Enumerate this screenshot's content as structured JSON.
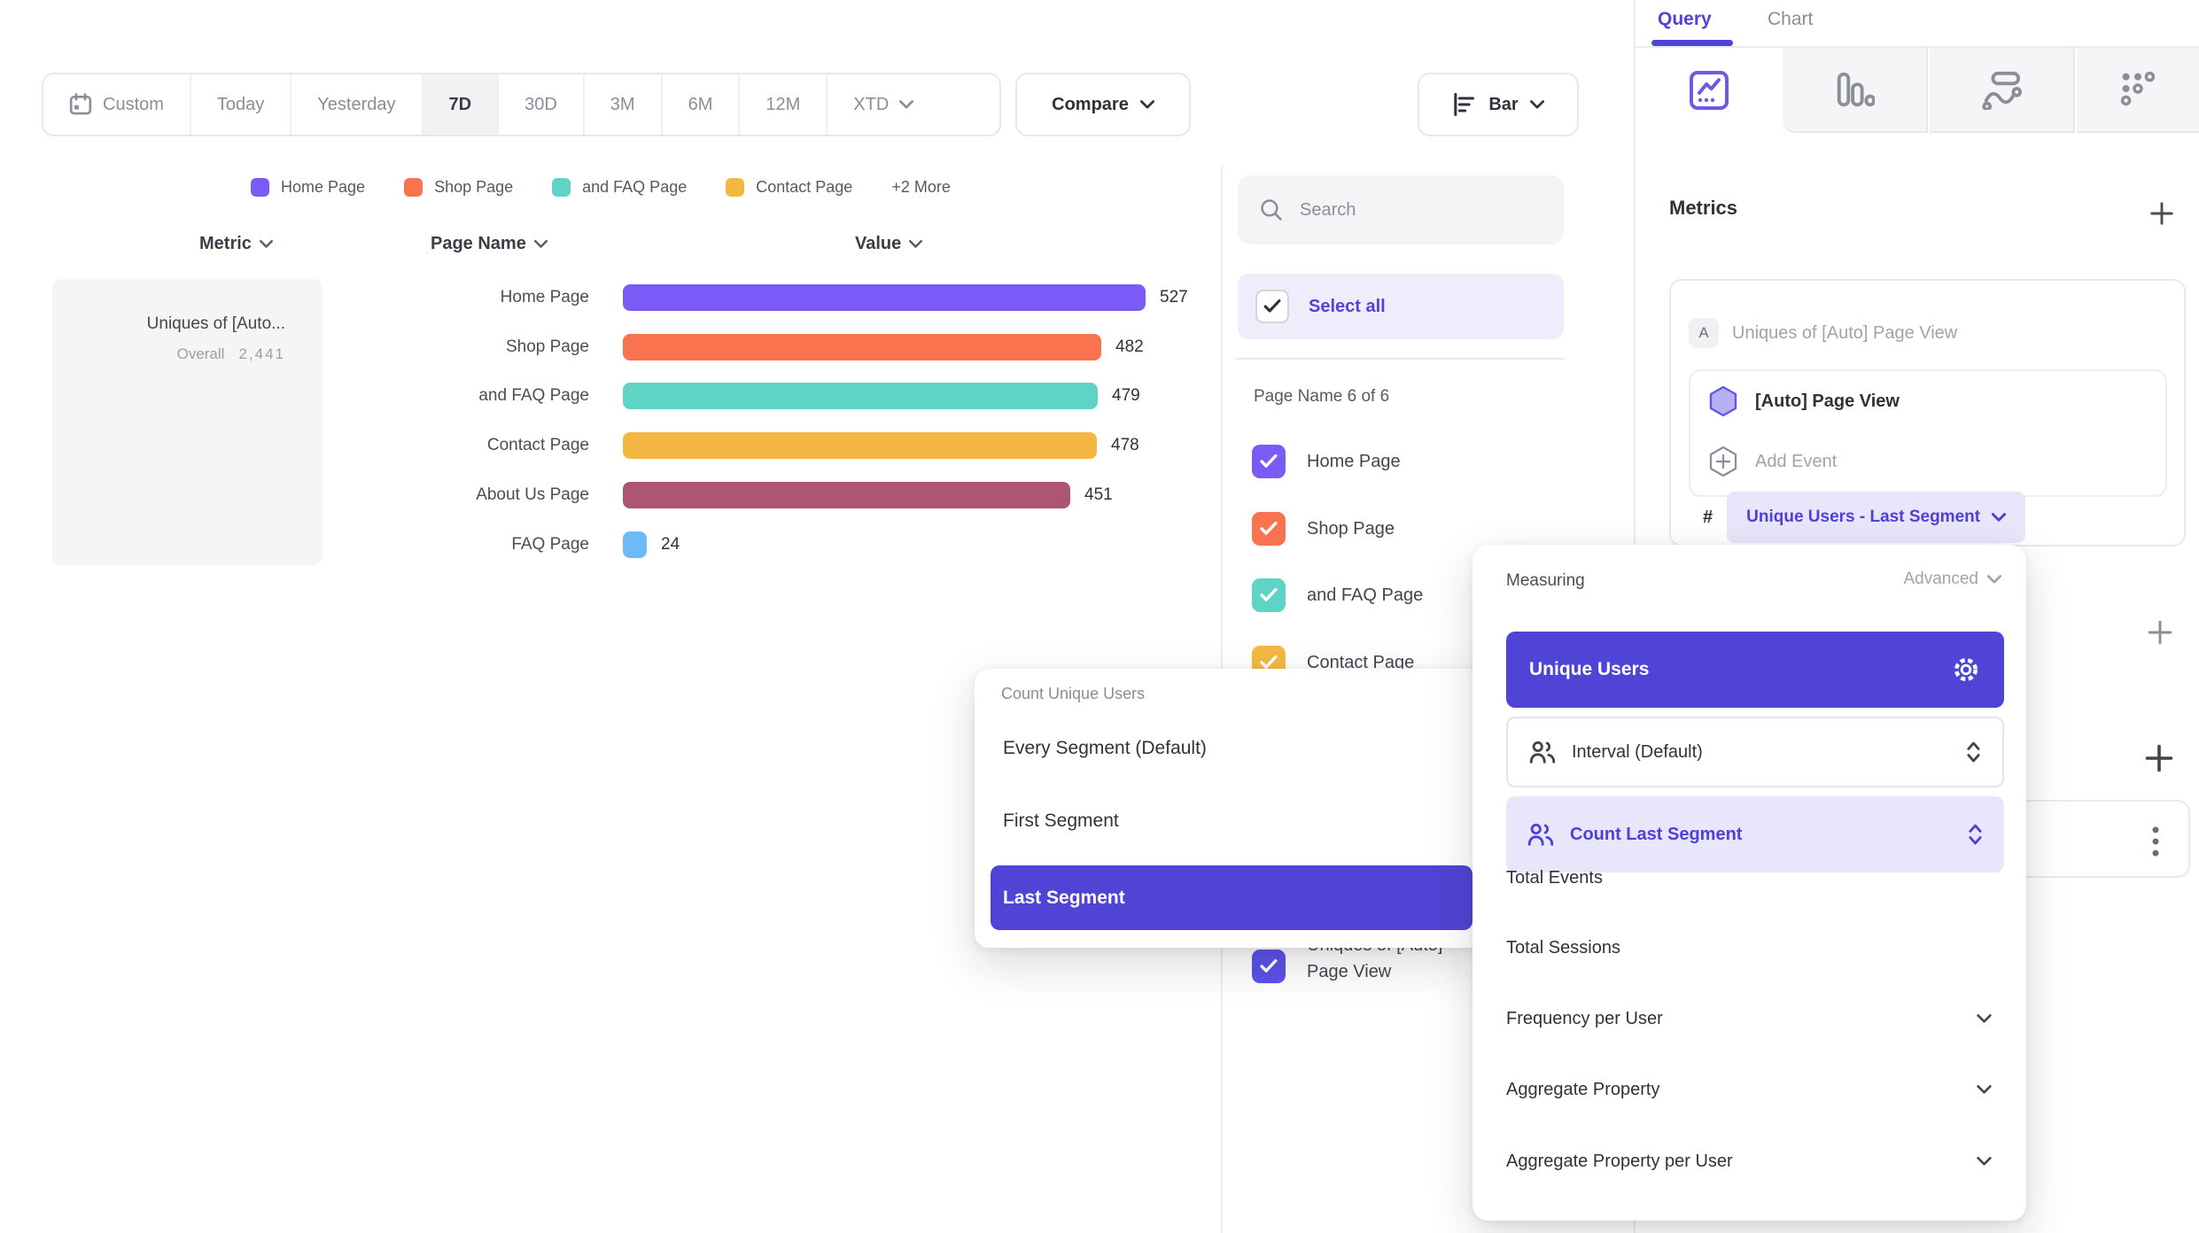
{
  "toolbar": {
    "ranges": [
      "Custom",
      "Today",
      "Yesterday",
      "7D",
      "30D",
      "3M",
      "6M",
      "12M",
      "XTD"
    ],
    "active_range": "7D",
    "compare": "Compare",
    "chart_type": "Bar"
  },
  "legend": {
    "items": [
      {
        "label": "Home Page",
        "color": "#7B5BF5"
      },
      {
        "label": "Shop Page",
        "color": "#F9734E"
      },
      {
        "label": "and FAQ Page",
        "color": "#5FD4C4"
      },
      {
        "label": "Contact Page",
        "color": "#F4B842"
      }
    ],
    "more": "+2 More"
  },
  "table": {
    "headers": {
      "metric": "Metric",
      "page": "Page Name",
      "value": "Value"
    },
    "metric_card": {
      "name": "Uniques of [Auto...",
      "overall_label": "Overall",
      "overall_value": "2,441"
    },
    "rows": [
      {
        "page": "Home Page",
        "value": "527",
        "color": "#7B5BF5"
      },
      {
        "page": "Shop Page",
        "value": "482",
        "color": "#F9734E"
      },
      {
        "page": "and FAQ Page",
        "value": "479",
        "color": "#5FD4C4"
      },
      {
        "page": "Contact Page",
        "value": "478",
        "color": "#F4B842"
      },
      {
        "page": "About Us Page",
        "value": "451",
        "color": "#AE5571"
      },
      {
        "page": "FAQ Page",
        "value": "24",
        "color": "#6FB9F4"
      }
    ]
  },
  "chart_data": {
    "type": "bar",
    "orientation": "horizontal",
    "title": "Uniques of [Auto] Page View",
    "categories": [
      "Home Page",
      "Shop Page",
      "and FAQ Page",
      "Contact Page",
      "About Us Page",
      "FAQ Page"
    ],
    "values": [
      527,
      482,
      479,
      478,
      451,
      24
    ],
    "overall": 2441,
    "colors": [
      "#7B5BF5",
      "#F9734E",
      "#5FD4C4",
      "#F4B842",
      "#AE5571",
      "#6FB9F4"
    ]
  },
  "filters": {
    "search_placeholder": "Search",
    "select_all": "Select all",
    "group_label": "Page Name 6 of 6",
    "items": [
      {
        "label": "Home Page",
        "color": "#7B5BF5",
        "checked": true
      },
      {
        "label": "Shop Page",
        "color": "#F9734E",
        "checked": true
      },
      {
        "label": "and FAQ Page",
        "color": "#5FD4C4",
        "checked": true
      },
      {
        "label": "Contact Page",
        "color": "#F4B842",
        "checked": true
      },
      {
        "label": "Uniques of [Auto] Page View",
        "color": "#5B51E8",
        "checked": true
      }
    ]
  },
  "panel": {
    "tabs": [
      "Query",
      "Chart"
    ],
    "active_tab": "Query",
    "metrics_heading": "Metrics",
    "metric_letter": "A",
    "metric_title": "Uniques of [Auto] Page View",
    "event_name": "[Auto] Page View",
    "add_event": "Add Event",
    "hash": "#",
    "measure_pill": "Unique Users - Last Segment"
  },
  "measuring": {
    "title": "Measuring",
    "advanced": "Advanced",
    "selected": "Unique Users",
    "interval": "Interval (Default)",
    "count_last": "Count Last Segment",
    "options": [
      "Total Events",
      "Total Sessions"
    ],
    "expandable": [
      "Frequency per User",
      "Aggregate Property",
      "Aggregate Property per User"
    ]
  },
  "segment": {
    "title": "Count Unique Users",
    "options": [
      "Every Segment (Default)",
      "First Segment",
      "Last Segment"
    ],
    "selected": "Last Segment"
  },
  "colors": {
    "accent": "#4F43D8",
    "accent_bg": "#5044D6",
    "accent_light": "#E9E5FA",
    "select_all_bg": "#EFECFB",
    "border": "#E9E9EC",
    "text_dark": "#2F323A",
    "text_gray": "#8A8E99"
  }
}
